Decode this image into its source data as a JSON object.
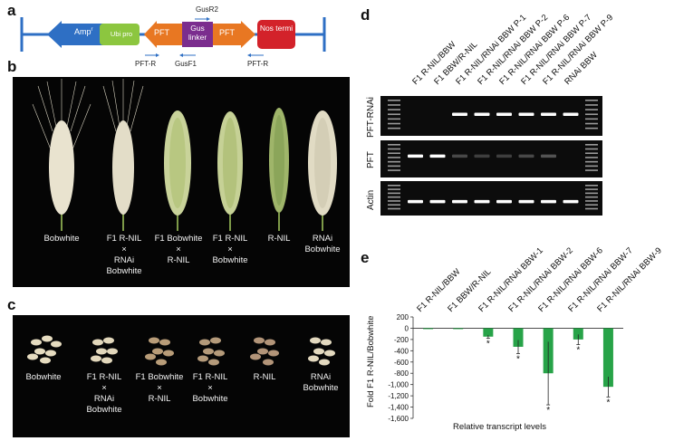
{
  "panels": {
    "a": {
      "label": "a",
      "boxes": {
        "amp": "Amp",
        "amp_sup": "r",
        "ubi": "Ubi pro",
        "pft1": "PFT",
        "gus": "Gus linker",
        "pft2": "PFT",
        "nos": "Nos termi"
      },
      "primers": {
        "gusr2": "GusR2",
        "pftr1": "PFT-R",
        "gusf1": "GusF1",
        "pftr2": "PFT-R"
      },
      "colors": {
        "amp": "#2e6fc4",
        "ubi": "#8cc63f",
        "pft": "#e87722",
        "gus": "#7b2d8e",
        "nos": "#d3222a",
        "line": "#2e6fc4"
      }
    },
    "b": {
      "label": "b",
      "labels": [
        "Bobwhite",
        "F1 R-NIL\n×\nRNAi\nBobwhite",
        "F1 Bobwhite\n×\nR-NIL",
        "F1 R-NIL\n×\nBobwhite",
        "R-NIL",
        "RNAi\nBobwhite"
      ]
    },
    "c": {
      "label": "c",
      "labels": [
        "Bobwhite",
        "F1 R-NIL\n×\nRNAi\nBobwhite",
        "F1 Bobwhite\n×\nR-NIL",
        "F1 R-NIL\n×\nBobwhite",
        "R-NIL",
        "RNAi\nBobwhite"
      ]
    },
    "d": {
      "label": "d",
      "lanes": [
        "F1 R-NIL/BBW",
        "F1 BBW/R-NIL",
        "F1 R-NIL/RNAi BBW P-1",
        "F1 R-NIL/RNAi BBW P-2",
        "F1 R-NIL/RNAi BBW P-6",
        "F1 R-NIL/RNAi BBW P-7",
        "F1 R-NIL/RNAi BBW P-9",
        "RNAi BBW"
      ],
      "gels": [
        "PFT-RNAi",
        "PFT",
        "Actin"
      ],
      "band_presence": {
        "PFT-RNAi": [
          0,
          0,
          1,
          1,
          1,
          1,
          1,
          1
        ],
        "PFT": [
          1,
          1,
          0.15,
          0.1,
          0.1,
          0.15,
          0.2,
          0
        ],
        "Actin": [
          1,
          1,
          1,
          1,
          1,
          1,
          1,
          1
        ]
      }
    },
    "e": {
      "label": "e"
    }
  },
  "chart_data": {
    "type": "bar",
    "categories": [
      "F1 R-NIL/BBW",
      "F1 BBW/R-NIL",
      "F1 R-NIL/RNAi BBW-1",
      "F1 R-NIL/RNAi BBW-2",
      "F1 R-NIL/RNAi BBW-6",
      "F1 R-NIL/RNAi BBW-7",
      "F1 R-NIL/RNAi BBW-9"
    ],
    "values": [
      0,
      0,
      -150,
      -330,
      -800,
      -200,
      -1040
    ],
    "error": [
      0,
      0,
      30,
      120,
      560,
      90,
      180
    ],
    "significant": [
      false,
      false,
      true,
      true,
      true,
      true,
      true
    ],
    "significance_mark": "*",
    "ylabel": "Fold F1 R-NIL/Bobwhite",
    "xlabel": "Relative transcript levels",
    "ylim": [
      -1600,
      200
    ],
    "yticks": [
      200,
      0,
      -200,
      -400,
      -600,
      -800,
      -1000,
      -1200,
      -1400,
      -1600
    ],
    "ytick_labels": [
      "200",
      "0",
      "-200",
      "-400",
      "-600",
      "-800",
      "-1,000",
      "-1,200",
      "-1,400",
      "-1,600"
    ],
    "bar_color": "#27a348"
  }
}
